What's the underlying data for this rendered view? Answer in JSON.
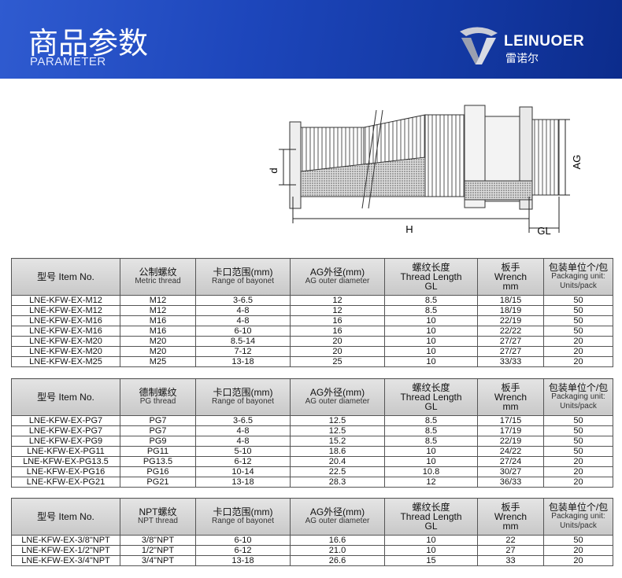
{
  "header": {
    "title": "商品参数",
    "subtitle": "PARAMETER",
    "logo": "LEINUOER",
    "logo_cn": "雷诺尔"
  },
  "diagram": {
    "labels": {
      "d": "d",
      "ag": "AG",
      "h": "H",
      "gl": "GL"
    }
  },
  "tables": [
    {
      "header": [
        [
          "型号 Item No."
        ],
        [
          "公制螺纹",
          "Metric thread"
        ],
        [
          "卡口范围(mm)",
          "Range of bayonet"
        ],
        [
          "AG外径(mm)",
          "AG outer diameter"
        ],
        [
          "螺纹长度",
          "Thread Length",
          "GL"
        ],
        [
          "板手",
          "Wrench",
          "mm"
        ],
        [
          "包装单位个/包",
          "Packaging unit:",
          "Units/pack"
        ]
      ],
      "rows": [
        [
          "LNE-KFW-EX-M12",
          "M12",
          "3-6.5",
          "12",
          "8.5",
          "18/15",
          "50"
        ],
        [
          "LNE-KFW-EX-M12",
          "M12",
          "4-8",
          "12",
          "8.5",
          "18/19",
          "50"
        ],
        [
          "LNE-KFW-EX-M16",
          "M16",
          "4-8",
          "16",
          "10",
          "22/19",
          "50"
        ],
        [
          "LNE-KFW-EX-M16",
          "M16",
          "6-10",
          "16",
          "10",
          "22/22",
          "50"
        ],
        [
          "LNE-KFW-EX-M20",
          "M20",
          "8.5-14",
          "20",
          "10",
          "27/27",
          "20"
        ],
        [
          "LNE-KFW-EX-M20",
          "M20",
          "7-12",
          "20",
          "10",
          "27/27",
          "20"
        ],
        [
          "LNE-KFW-EX-M25",
          "M25",
          "13-18",
          "25",
          "10",
          "33/33",
          "20"
        ]
      ]
    },
    {
      "header": [
        [
          "型号 Item No."
        ],
        [
          "德制螺纹",
          "PG thread"
        ],
        [
          "卡口范围(mm)",
          "Range of bayonet"
        ],
        [
          "AG外径(mm)",
          "AG outer diameter"
        ],
        [
          "螺纹长度",
          "Thread Length",
          "GL"
        ],
        [
          "板手",
          "Wrench",
          "mm"
        ],
        [
          "包装单位个/包",
          "Packaging unit:",
          "Units/pack"
        ]
      ],
      "rows": [
        [
          "LNE-KFW-EX-PG7",
          "PG7",
          "3-6.5",
          "12.5",
          "8.5",
          "17/15",
          "50"
        ],
        [
          "LNE-KFW-EX-PG7",
          "PG7",
          "4-8",
          "12.5",
          "8.5",
          "17/19",
          "50"
        ],
        [
          "LNE-KFW-EX-PG9",
          "PG9",
          "4-8",
          "15.2",
          "8.5",
          "22/19",
          "50"
        ],
        [
          "LNE-KFW-EX-PG11",
          "PG11",
          "5-10",
          "18.6",
          "10",
          "24/22",
          "50"
        ],
        [
          "LNE-KFW-EX-PG13.5",
          "PG13.5",
          "6-12",
          "20.4",
          "10",
          "27/24",
          "20"
        ],
        [
          "LNE-KFW-EX-PG16",
          "PG16",
          "10-14",
          "22.5",
          "10.8",
          "30/27",
          "20"
        ],
        [
          "LNE-KFW-EX-PG21",
          "PG21",
          "13-18",
          "28.3",
          "12",
          "36/33",
          "20"
        ]
      ]
    },
    {
      "header": [
        [
          "型号 Item No."
        ],
        [
          "NPT螺纹",
          "NPT thread"
        ],
        [
          "卡口范围(mm)",
          "Range of bayonet"
        ],
        [
          "AG外径(mm)",
          "AG outer diameter"
        ],
        [
          "螺纹长度",
          "Thread Length",
          "GL"
        ],
        [
          "板手",
          "Wrench",
          "mm"
        ],
        [
          "包装单位个/包",
          "Packaging unit:",
          "Units/pack"
        ]
      ],
      "rows": [
        [
          "LNE-KFW-EX-3/8\"NPT",
          "3/8\"NPT",
          "6-10",
          "16.6",
          "10",
          "22",
          "50"
        ],
        [
          "LNE-KFW-EX-1/2\"NPT",
          "1/2\"NPT",
          "6-12",
          "21.0",
          "10",
          "27",
          "20"
        ],
        [
          "LNE-KFW-EX-3/4\"NPT",
          "3/4\"NPT",
          "13-18",
          "26.6",
          "15",
          "33",
          "20"
        ]
      ]
    }
  ]
}
